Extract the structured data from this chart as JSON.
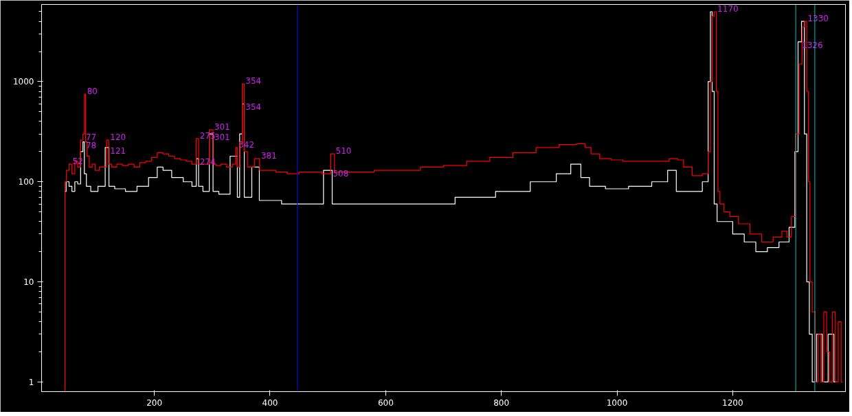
{
  "chart_data": {
    "type": "step",
    "log": "y",
    "grid": false,
    "marker": "none",
    "line_style": "solid",
    "xlim": [
      5,
      1395
    ],
    "ylim": [
      0.8,
      5900
    ],
    "xticks": [
      200,
      400,
      600,
      800,
      1000,
      1200
    ],
    "yticks": [
      1,
      10,
      100,
      1000
    ],
    "series": [
      {
        "color": "#ffffff",
        "x": [
          45,
          50,
          55,
          60,
          65,
          70,
          75,
          78,
          80,
          85,
          95,
          110,
          120,
          123,
          140,
          160,
          180,
          200,
          210,
          220,
          240,
          260,
          270,
          275,
          278,
          290,
          300,
          303,
          320,
          342,
          345,
          350,
          354,
          357,
          380,
          383,
          400,
          440,
          480,
          505,
          510,
          540,
          600,
          680,
          760,
          820,
          880,
          910,
          930,
          945,
          960,
          1000,
          1040,
          1080,
          1095,
          1110,
          1140,
          1155,
          1160,
          1163,
          1166,
          1170,
          1176,
          1190,
          1210,
          1230,
          1250,
          1270,
          1290,
          1305,
          1310,
          1316,
          1322,
          1326,
          1330,
          1335,
          1340,
          1350,
          1360,
          1370,
          1380
        ],
        "values": [
          80,
          100,
          90,
          80,
          100,
          95,
          200,
          250,
          120,
          90,
          80,
          90,
          220,
          90,
          85,
          80,
          90,
          110,
          140,
          130,
          110,
          100,
          90,
          170,
          90,
          80,
          300,
          80,
          75,
          180,
          70,
          300,
          600,
          70,
          140,
          65,
          65,
          60,
          60,
          130,
          60,
          60,
          60,
          60,
          70,
          80,
          100,
          120,
          150,
          110,
          90,
          85,
          90,
          100,
          130,
          80,
          80,
          100,
          1000,
          5000,
          800,
          60,
          40,
          40,
          30,
          25,
          20,
          22,
          25,
          35,
          200,
          2500,
          4000,
          300,
          10,
          3,
          1,
          3,
          1,
          3,
          1
        ]
      },
      {
        "color": "#ff0000",
        "x": [
          45,
          46,
          50,
          55,
          60,
          65,
          70,
          75,
          78,
          80,
          82,
          85,
          90,
          95,
          100,
          110,
          115,
          120,
          122,
          130,
          140,
          150,
          160,
          170,
          180,
          190,
          200,
          210,
          220,
          230,
          240,
          250,
          260,
          270,
          275,
          278,
          290,
          300,
          303,
          310,
          320,
          330,
          340,
          342,
          345,
          350,
          354,
          357,
          365,
          381,
          383,
          400,
          420,
          440,
          460,
          480,
          500,
          510,
          513,
          540,
          560,
          600,
          640,
          680,
          720,
          760,
          800,
          840,
          880,
          920,
          940,
          950,
          960,
          980,
          1000,
          1020,
          1050,
          1080,
          1100,
          1110,
          1120,
          1140,
          1155,
          1160,
          1163,
          1166,
          1170,
          1173,
          1176,
          1180,
          1190,
          1200,
          1220,
          1240,
          1260,
          1280,
          1290,
          1298,
          1305,
          1312,
          1318,
          1322,
          1326,
          1330,
          1332,
          1335,
          1340,
          1345,
          1350,
          1355,
          1360,
          1365,
          1370,
          1375,
          1380,
          1385,
          1390
        ],
        "values": [
          0.8,
          100,
          130,
          150,
          120,
          160,
          140,
          260,
          300,
          750,
          250,
          180,
          140,
          150,
          130,
          140,
          140,
          260,
          150,
          140,
          150,
          145,
          150,
          140,
          155,
          160,
          175,
          195,
          190,
          180,
          170,
          165,
          160,
          150,
          270,
          150,
          150,
          330,
          150,
          145,
          150,
          140,
          150,
          220,
          140,
          250,
          950,
          200,
          140,
          170,
          130,
          130,
          125,
          120,
          125,
          125,
          120,
          190,
          125,
          125,
          125,
          130,
          130,
          140,
          145,
          160,
          175,
          195,
          220,
          235,
          240,
          220,
          190,
          170,
          165,
          160,
          160,
          160,
          170,
          165,
          140,
          115,
          120,
          200,
          1000,
          4500,
          5000,
          800,
          80,
          60,
          50,
          45,
          38,
          30,
          25,
          28,
          32,
          28,
          45,
          300,
          1500,
          3500,
          4000,
          800,
          100,
          10,
          5,
          1,
          3,
          1,
          5,
          2,
          1,
          5,
          1,
          4,
          1
        ]
      }
    ],
    "ref_lines": [
      {
        "axis": "x",
        "value": 447,
        "color": "#0000ff"
      },
      {
        "axis": "x",
        "value": 1309,
        "color": "#00c0c0"
      },
      {
        "axis": "x",
        "value": 1342,
        "color": "#00c0c0"
      }
    ],
    "annotations": [
      {
        "text": "52",
        "x": 55,
        "y": 150
      },
      {
        "text": "77",
        "x": 78,
        "y": 300
      },
      {
        "text": "78",
        "x": 78,
        "y": 250
      },
      {
        "text": "80",
        "x": 80,
        "y": 750
      },
      {
        "text": "120",
        "x": 120,
        "y": 260
      },
      {
        "text": "121",
        "x": 120,
        "y": 220
      },
      {
        "text": "275",
        "x": 275,
        "y": 270
      },
      {
        "text": "274",
        "x": 275,
        "y": 170
      },
      {
        "text": "301",
        "x": 300,
        "y": 330
      },
      {
        "text": "301",
        "x": 300,
        "y": 300
      },
      {
        "text": "354",
        "x": 354,
        "y": 950
      },
      {
        "text": "354",
        "x": 354,
        "y": 600
      },
      {
        "text": "342",
        "x": 342,
        "y": 220
      },
      {
        "text": "381",
        "x": 381,
        "y": 170
      },
      {
        "text": "510",
        "x": 510,
        "y": 190
      },
      {
        "text": "508",
        "x": 505,
        "y": 130
      },
      {
        "text": "1170",
        "x": 1170,
        "y": 5000
      },
      {
        "text": "1330",
        "x": 1326,
        "y": 4000
      },
      {
        "text": "1326",
        "x": 1316,
        "y": 2500
      }
    ]
  }
}
